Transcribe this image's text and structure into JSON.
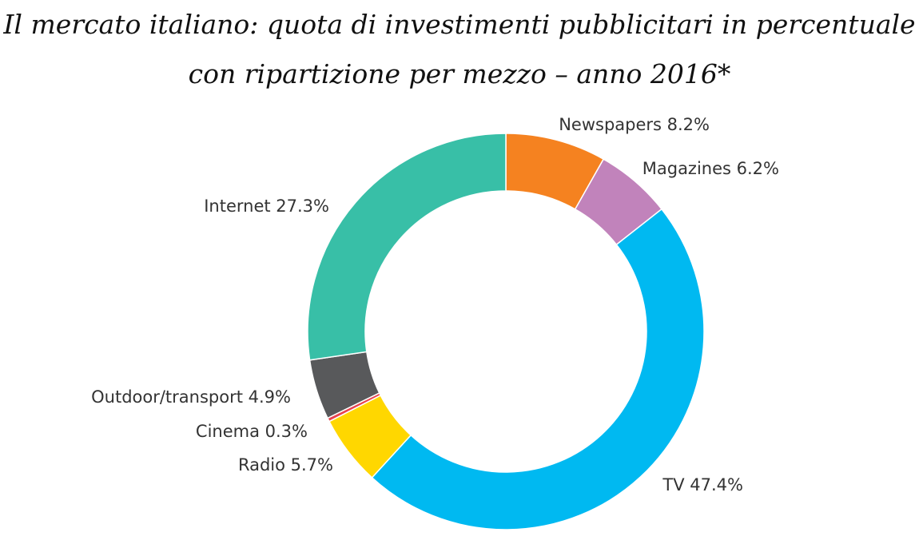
{
  "title_line1": "Il mercato italiano: quota di investimenti pubblicitari in percentuale",
  "title_line2": "con ripartizione per mezzo – anno 2016*",
  "chart_data": {
    "type": "pie",
    "variant": "donut",
    "start": "top",
    "direction": "clockwise",
    "legend": "none",
    "slices": [
      {
        "name": "Newspapers",
        "value": 8.2,
        "label": "Newspapers 8.2%",
        "color": "#F58220"
      },
      {
        "name": "Magazines",
        "value": 6.2,
        "label": "Magazines 6.2%",
        "color": "#C183BB"
      },
      {
        "name": "TV",
        "value": 47.4,
        "label": "TV 47.4%",
        "color": "#00B9F1"
      },
      {
        "name": "Radio",
        "value": 5.7,
        "label": "Radio 5.7%",
        "color": "#FFD700"
      },
      {
        "name": "Cinema",
        "value": 0.3,
        "label": "Cinema 0.3%",
        "color": "#E8434F"
      },
      {
        "name": "Outdoor/transport",
        "value": 4.9,
        "label": "Outdoor/transport 4.9%",
        "color": "#58595B"
      },
      {
        "name": "Internet",
        "value": 27.3,
        "label": "Internet 27.3%",
        "color": "#38BFA7"
      }
    ]
  }
}
